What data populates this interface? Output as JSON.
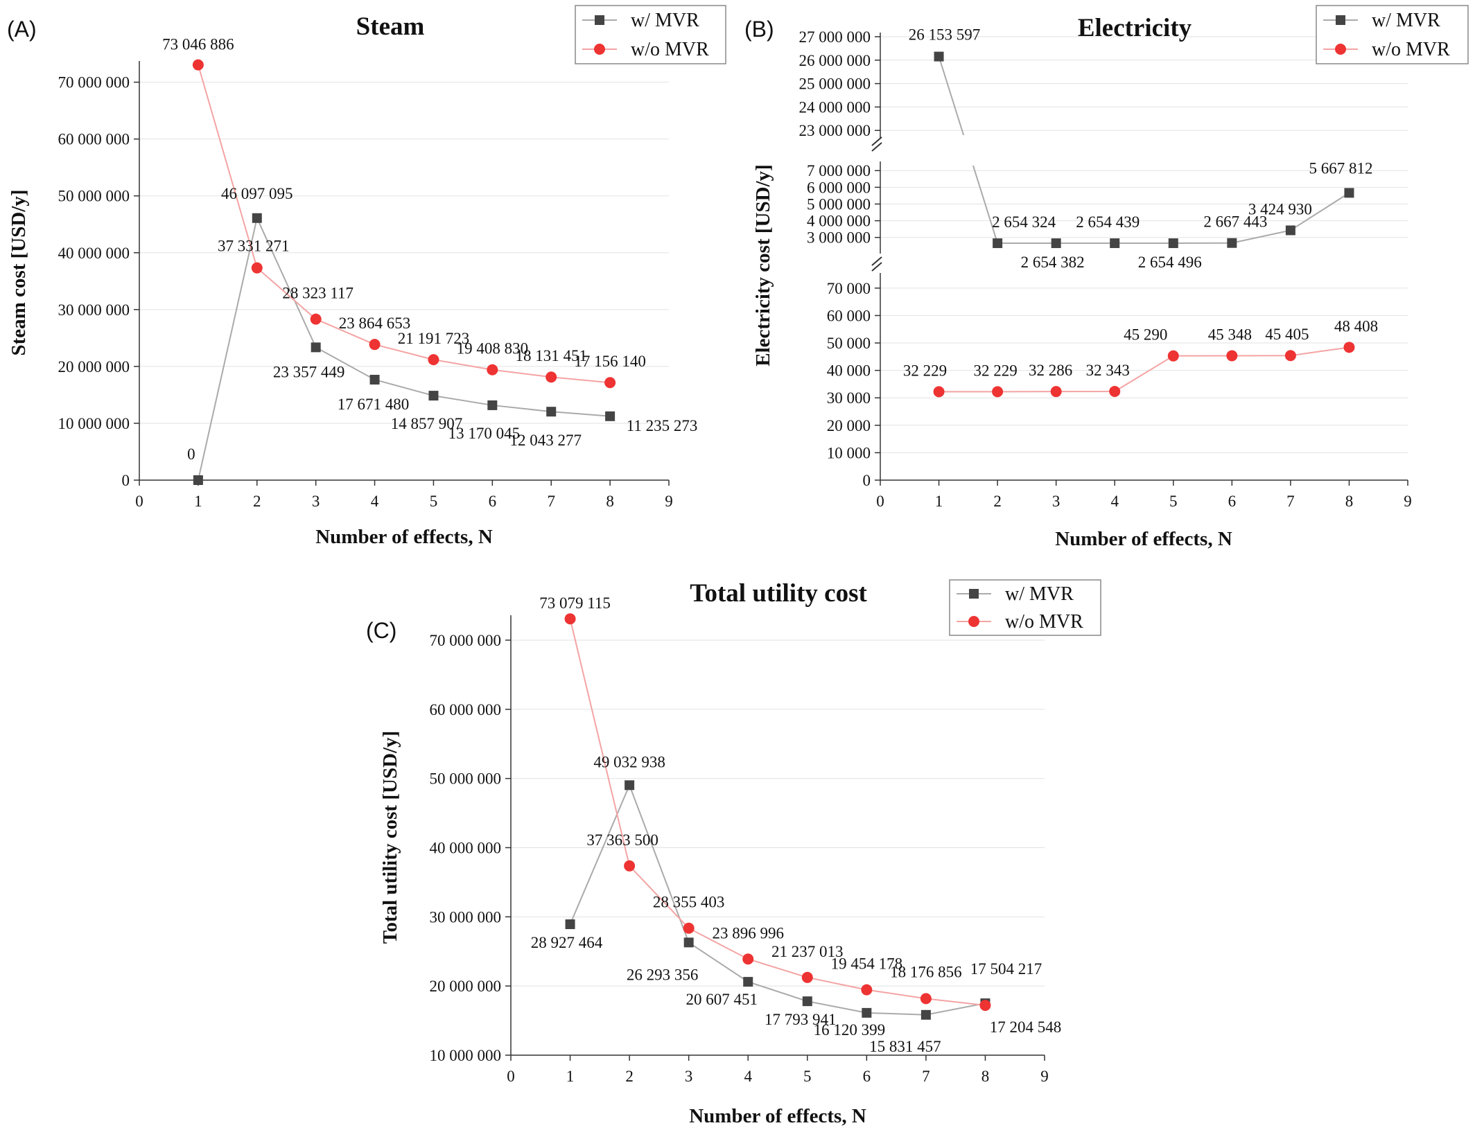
{
  "colors": {
    "with_mvr": "#444444",
    "with_mvr_line": "#aaaaaa",
    "without_mvr": "#ee3333",
    "without_mvr_line": "#f4a3a3",
    "grid": "#e2e2e2"
  },
  "chart_data": [
    {
      "panel": "(A)",
      "type": "line",
      "title": "Steam",
      "xlabel": "Number of effects, N",
      "ylabel": "Steam cost [USD/y]",
      "xlim": [
        0,
        9
      ],
      "ylim": [
        0,
        73000000
      ],
      "x_ticks": [
        "0",
        "1",
        "2",
        "3",
        "4",
        "5",
        "6",
        "7",
        "8",
        "9"
      ],
      "y_ticks": [
        {
          "value": 0,
          "label": "0"
        },
        {
          "value": 10000000,
          "label": "10 000 000"
        },
        {
          "value": 20000000,
          "label": "20 000 000"
        },
        {
          "value": 30000000,
          "label": "30 000 000"
        },
        {
          "value": 40000000,
          "label": "40 000 000"
        },
        {
          "value": 50000000,
          "label": "50 000 000"
        },
        {
          "value": 60000000,
          "label": "60 000 000"
        },
        {
          "value": 70000000,
          "label": "70 000 000"
        }
      ],
      "legend_position": "top-right",
      "series": [
        {
          "name": "w/ MVR",
          "marker": "square",
          "x": [
            1,
            2,
            3,
            4,
            5,
            6,
            7,
            8
          ],
          "values": [
            0,
            46097095,
            23357449,
            17671480,
            14857907,
            13170045,
            12043277,
            11235273
          ],
          "labels": [
            "0",
            "46 097 095",
            "23 357 449",
            "17 671 480",
            "14 857 907",
            "13 170 045",
            "12 043 277",
            "11 235 273"
          ]
        },
        {
          "name": "w/o MVR",
          "marker": "circle",
          "x": [
            1,
            2,
            3,
            4,
            5,
            6,
            7,
            8
          ],
          "values": [
            73046886,
            37331271,
            28323117,
            23864653,
            21191723,
            19408830,
            18131451,
            17156140
          ],
          "labels": [
            "73 046 886",
            "37 331 271",
            "28 323 117",
            "23 864 653",
            "21 191 723",
            "19 408 830",
            "18 131 451",
            "17 156 140"
          ]
        }
      ]
    },
    {
      "panel": "(B)",
      "type": "line",
      "title": "Electricity",
      "xlabel": "Number of effects, N",
      "ylabel": "Electricity cost [USD/y]",
      "xlim": [
        0,
        9
      ],
      "axis_breaks": true,
      "segments": [
        {
          "ylim": [
            0,
            74000
          ],
          "ticks": [
            {
              "value": 0,
              "label": "0"
            },
            {
              "value": 10000,
              "label": "10 000"
            },
            {
              "value": 20000,
              "label": "20 000"
            },
            {
              "value": 30000,
              "label": "30 000"
            },
            {
              "value": 40000,
              "label": "40 000"
            },
            {
              "value": 50000,
              "label": "50 000"
            },
            {
              "value": 60000,
              "label": "60 000"
            },
            {
              "value": 70000,
              "label": "70 000"
            }
          ]
        },
        {
          "ylim": [
            2200000,
            7300000
          ],
          "ticks": [
            {
              "value": 3000000,
              "label": "3 000 000"
            },
            {
              "value": 4000000,
              "label": "4 000 000"
            },
            {
              "value": 5000000,
              "label": "5 000 000"
            },
            {
              "value": 6000000,
              "label": "6 000 000"
            },
            {
              "value": 7000000,
              "label": "7 000 000"
            }
          ]
        },
        {
          "ylim": [
            22800000,
            27000000
          ],
          "ticks": [
            {
              "value": 23000000,
              "label": "23 000 000"
            },
            {
              "value": 24000000,
              "label": "24 000 000"
            },
            {
              "value": 25000000,
              "label": "25 000 000"
            },
            {
              "value": 26000000,
              "label": "26 000 000"
            },
            {
              "value": 27000000,
              "label": "27 000 000"
            }
          ]
        }
      ],
      "x_ticks": [
        "0",
        "1",
        "2",
        "3",
        "4",
        "5",
        "6",
        "7",
        "8",
        "9"
      ],
      "legend_position": "top-right",
      "series": [
        {
          "name": "w/ MVR",
          "marker": "square",
          "x": [
            1,
            2,
            3,
            4,
            5,
            6,
            7,
            8
          ],
          "values": [
            26153597,
            2654324,
            2654382,
            2654439,
            2654496,
            2667443,
            3424930,
            5667812
          ],
          "labels": [
            "26 153 597",
            "2 654 324",
            "2 654 382",
            "2 654 439",
            "2 654 496",
            "2 667 443",
            "3 424 930",
            "5 667 812"
          ]
        },
        {
          "name": "w/o MVR",
          "marker": "circle",
          "x": [
            1,
            2,
            3,
            4,
            5,
            6,
            7,
            8
          ],
          "values": [
            32229,
            32229,
            32286,
            32343,
            45290,
            45348,
            45405,
            48408
          ],
          "labels": [
            "32 229",
            "32 229",
            "32 286",
            "32 343",
            "45 290",
            "45 348",
            "45 405",
            "48 408"
          ]
        }
      ]
    },
    {
      "panel": "(C)",
      "type": "line",
      "title": "Total utility cost",
      "xlabel": "Number of effects, N",
      "ylabel": "Total utility cost [USD/y]",
      "xlim": [
        0,
        9
      ],
      "ylim": [
        10000000,
        73000000
      ],
      "x_ticks": [
        "0",
        "1",
        "2",
        "3",
        "4",
        "5",
        "6",
        "7",
        "8",
        "9"
      ],
      "y_ticks": [
        {
          "value": 10000000,
          "label": "10 000 000"
        },
        {
          "value": 20000000,
          "label": "20 000 000"
        },
        {
          "value": 30000000,
          "label": "30 000 000"
        },
        {
          "value": 40000000,
          "label": "40 000 000"
        },
        {
          "value": 50000000,
          "label": "50 000 000"
        },
        {
          "value": 60000000,
          "label": "60 000 000"
        },
        {
          "value": 70000000,
          "label": "70 000 000"
        }
      ],
      "legend_position": "top-right",
      "series": [
        {
          "name": "w/ MVR",
          "marker": "square",
          "x": [
            1,
            2,
            3,
            4,
            5,
            6,
            7,
            8
          ],
          "values": [
            28927464,
            49032938,
            26293356,
            20607451,
            17793941,
            16120399,
            15831457,
            17504217
          ],
          "labels": [
            "28 927 464",
            "49 032 938",
            "26 293 356",
            "20 607 451",
            "17 793 941",
            "16 120 399",
            "15 831 457",
            "17 504 217"
          ]
        },
        {
          "name": "w/o MVR",
          "marker": "circle",
          "x": [
            1,
            2,
            3,
            4,
            5,
            6,
            7,
            8
          ],
          "values": [
            73079115,
            37363500,
            28355403,
            23896996,
            21237013,
            19454178,
            18176856,
            17204548
          ],
          "labels": [
            "73 079 115",
            "37 363 500",
            "28 355 403",
            "23 896 996",
            "21 237 013",
            "19 454 178",
            "18 176 856",
            "17 204 548"
          ]
        }
      ]
    }
  ]
}
